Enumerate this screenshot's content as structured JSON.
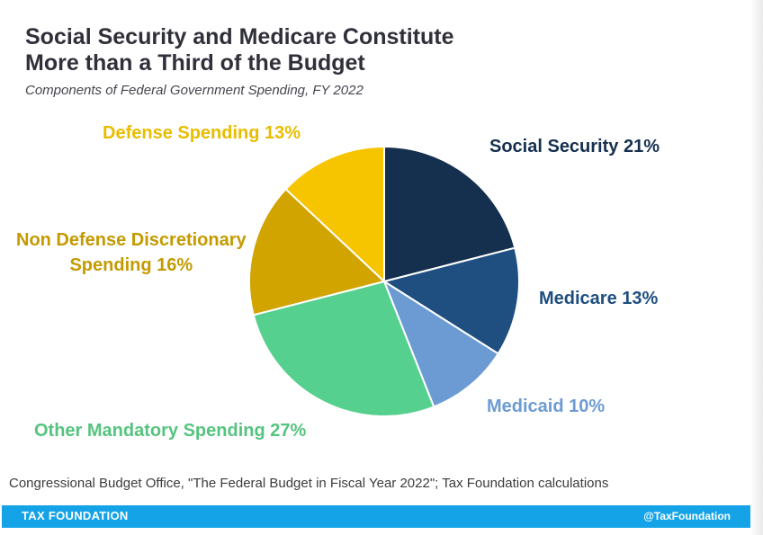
{
  "header": {
    "title_line1": "Social Security and Medicare Constitute",
    "title_line2": "More than a Third of the Budget",
    "subtitle": "Components of Federal Government Spending, FY 2022"
  },
  "chart_data": {
    "type": "pie",
    "title": "Social Security and Medicare Constitute More than a Third of the Budget",
    "subtitle": "Components of Federal Government Spending, FY 2022",
    "unit": "%",
    "slices": [
      {
        "name": "Social Security",
        "label": "Social Security 21%",
        "value": 21,
        "color": "#15304f"
      },
      {
        "name": "Medicare",
        "label": "Medicare 13%",
        "value": 13,
        "color": "#1f4f80"
      },
      {
        "name": "Medicaid",
        "label": "Medicaid 10%",
        "value": 10,
        "color": "#6c9bd3"
      },
      {
        "name": "Other Mandatory Spending",
        "label": "Other Mandatory Spending 27%",
        "value": 27,
        "color": "#55d08e"
      },
      {
        "name": "Non Defense Discretionary Spending",
        "label_line1": "Non Defense Discretionary",
        "label_line2": "Spending 16%",
        "value": 16,
        "color": "#d2a400"
      },
      {
        "name": "Defense Spending",
        "label": "Defense Spending 13%",
        "value": 13,
        "color": "#f6c500"
      }
    ]
  },
  "labels_colors": {
    "social_security": "#15304f",
    "medicare": "#1f4f80",
    "medicaid": "#6c9bd3",
    "other_mandatory": "#55c47f",
    "non_defense": "#c49a00",
    "defense": "#e8bd00"
  },
  "source": "Congressional Budget Office, \"The Federal Budget in Fiscal Year 2022\"; Tax Foundation calculations",
  "footer": {
    "brand": "TAX FOUNDATION",
    "handle": "@TaxFoundation",
    "color": "#14a3e6"
  }
}
